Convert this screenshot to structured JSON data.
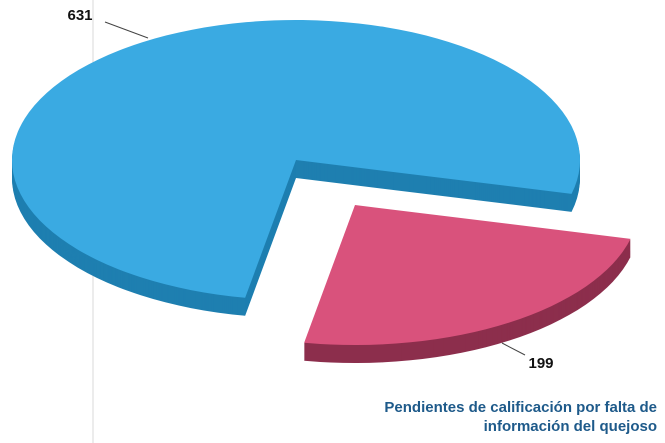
{
  "chart_data": {
    "type": "pie",
    "categories": [
      null,
      "Pendientes de calificación por falta de información del quejoso"
    ],
    "values": [
      631,
      199
    ],
    "colors": [
      "#3aaae2",
      "#d9527c"
    ],
    "side_colors": [
      "#1e7fb0",
      "#8c2e4c"
    ]
  }
}
